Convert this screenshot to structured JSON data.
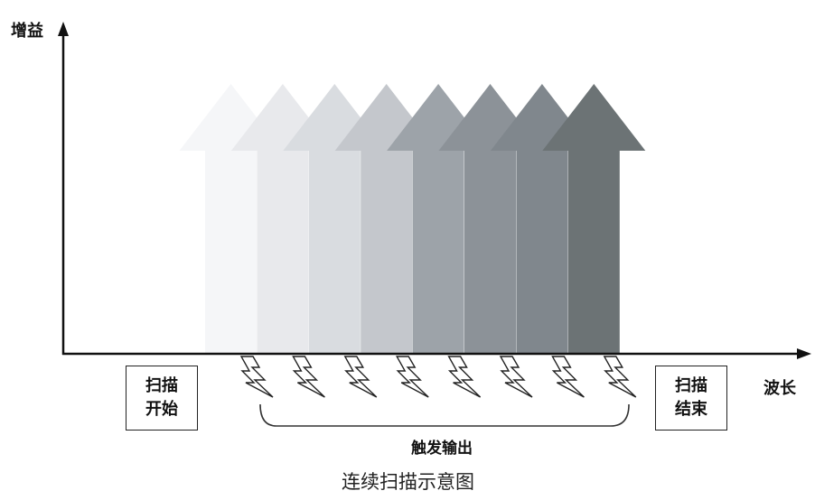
{
  "axes": {
    "y_label": "增益",
    "x_label": "波长"
  },
  "scan_start": {
    "line1": "扫描",
    "line2": "开始"
  },
  "scan_end": {
    "line1": "扫描",
    "line2": "结束"
  },
  "trigger_label": "触发输出",
  "caption": "连续扫描示意图",
  "arrows": [
    {
      "color": "#f5f6f8"
    },
    {
      "color": "#e8e9ec"
    },
    {
      "color": "#d9dce0"
    },
    {
      "color": "#c4c7cc"
    },
    {
      "color": "#9da3a9"
    },
    {
      "color": "#8c9298"
    },
    {
      "color": "#80878d"
    },
    {
      "color": "#6c7375"
    }
  ],
  "lightning_count": 8
}
